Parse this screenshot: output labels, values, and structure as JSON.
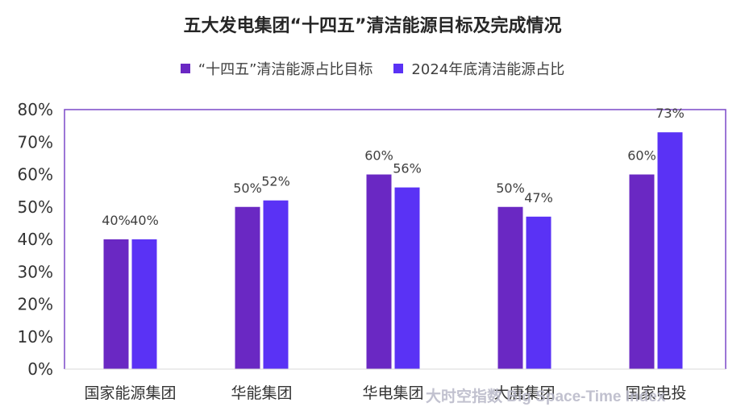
{
  "chart_data": {
    "type": "bar",
    "title": "五大发电集团“十四五”清洁能源目标及完成情况",
    "categories": [
      "国家能源集团",
      "华能集团",
      "华电集团",
      "大唐集团",
      "国家电投"
    ],
    "series": [
      {
        "name": "“十四五”清洁能源占比目标",
        "values": [
          40,
          50,
          60,
          50,
          60
        ],
        "labels": [
          "40%",
          "50%",
          "60%",
          "50%",
          "60%"
        ],
        "color": "#6a28c3"
      },
      {
        "name": "2024年底清洁能源占比",
        "values": [
          40,
          52,
          56,
          47,
          73
        ],
        "labels": [
          "40%",
          "52%",
          "56%",
          "47%",
          "73%"
        ],
        "color": "#5a32f5"
      }
    ],
    "ylim": [
      0,
      80
    ],
    "yticks": [
      0,
      10,
      20,
      30,
      40,
      50,
      60,
      70,
      80
    ],
    "ytick_labels": [
      "0%",
      "10%",
      "20%",
      "30%",
      "40%",
      "50%",
      "60%",
      "70%",
      "80%"
    ],
    "legend_position": "top-center",
    "grid": false,
    "frame_color": "#7b48c8"
  },
  "watermark_text": "大时空指数 Big Space-Time Index"
}
